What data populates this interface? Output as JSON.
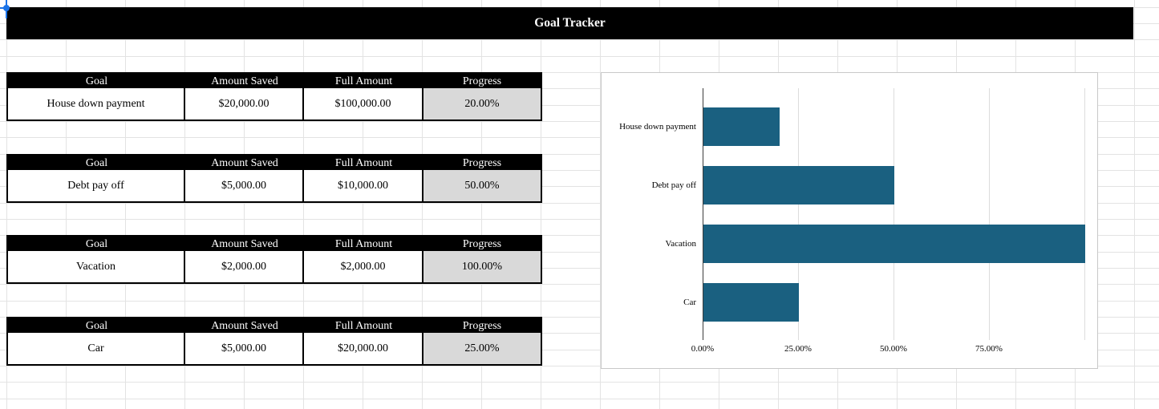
{
  "sheet": {
    "title": "Goal Tracker"
  },
  "table_headers": [
    "Goal",
    "Amount Saved",
    "Full Amount",
    "Progress"
  ],
  "goals": [
    {
      "goal": "House down payment",
      "amount_saved": "$20,000.00",
      "full_amount": "$100,000.00",
      "progress": "20.00%"
    },
    {
      "goal": "Debt pay off",
      "amount_saved": "$5,000.00",
      "full_amount": "$10,000.00",
      "progress": "50.00%"
    },
    {
      "goal": "Vacation",
      "amount_saved": "$2,000.00",
      "full_amount": "$2,000.00",
      "progress": "100.00%"
    },
    {
      "goal": "Car",
      "amount_saved": "$5,000.00",
      "full_amount": "$20,000.00",
      "progress": "25.00%"
    }
  ],
  "chart_data": {
    "type": "bar",
    "orientation": "horizontal",
    "title": "",
    "categories": [
      "House down payment",
      "Debt pay off",
      "Vacation",
      "Car"
    ],
    "values": [
      20,
      50,
      100,
      25
    ],
    "value_unit": "percent",
    "xlim": [
      0,
      100
    ],
    "x_tick_labels": [
      "0.00%",
      "25.00%",
      "50.00%",
      "75.00%"
    ],
    "x_tick_values": [
      0,
      25,
      50,
      75
    ],
    "x_gridline_values": [
      25,
      50,
      75,
      100
    ],
    "grid": true,
    "legend": false,
    "bar_color": "#1a6080"
  },
  "colors": {
    "banner_bg": "#000000",
    "banner_text": "#ffffff",
    "table_header_bg": "#000000",
    "table_header_text": "#ffffff",
    "progress_cell_bg": "#d9d9d9",
    "bar": "#1a6080",
    "gridline": "#e3e3e3",
    "chart_border": "#c9c9c9",
    "selection_handle": "#1a73e8"
  }
}
